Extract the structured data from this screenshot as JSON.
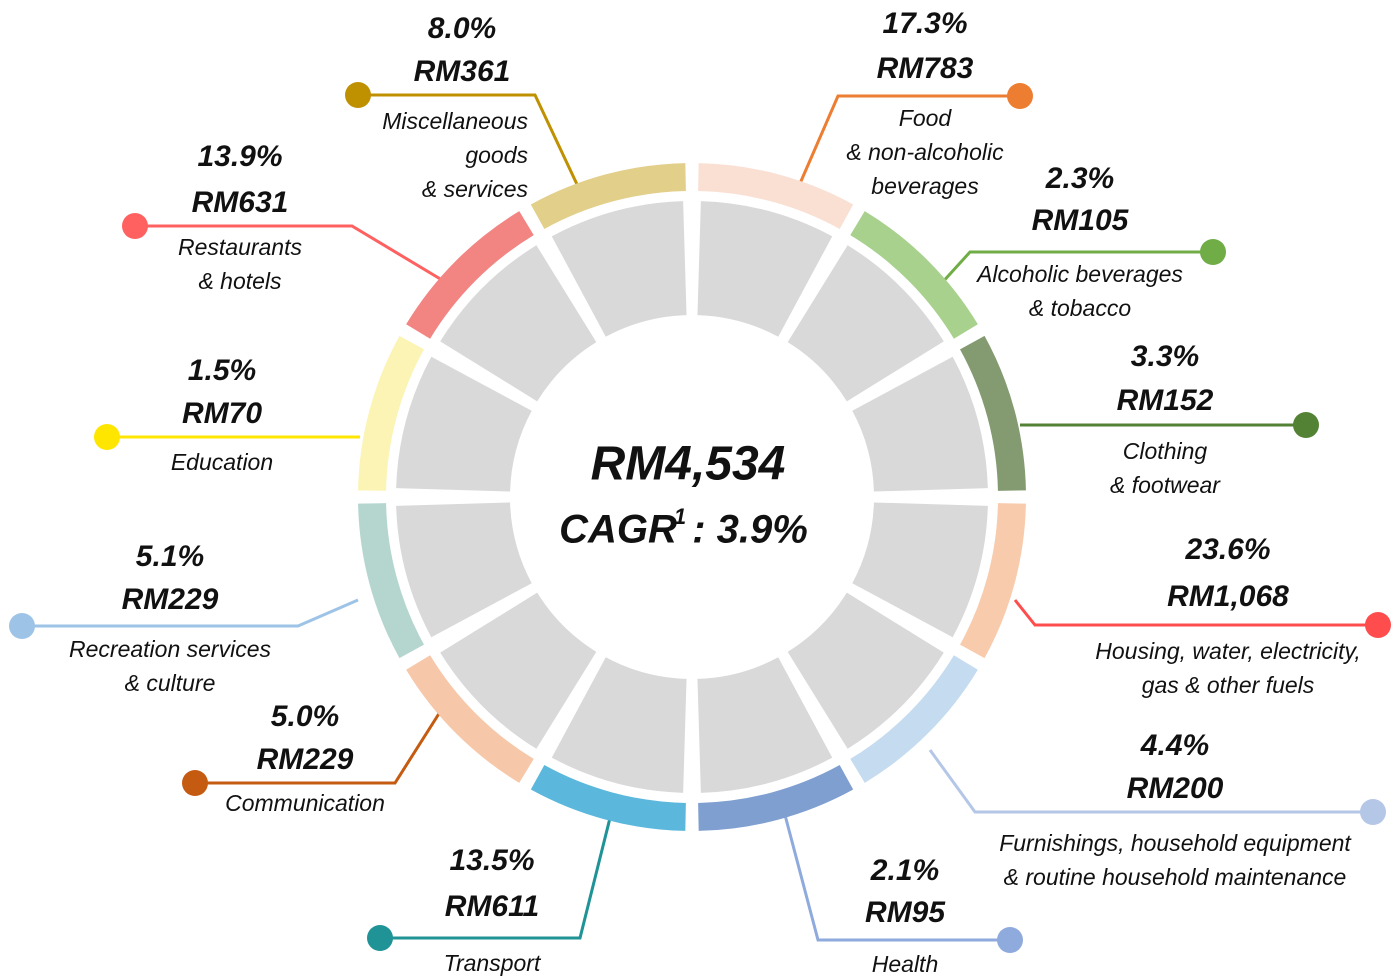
{
  "center": {
    "total": "RM4,534",
    "cagr_label": "CAGR",
    "cagr_note": "1",
    "cagr_value": ": 3.9%"
  },
  "segments": [
    {
      "pct": "17.3%",
      "amount": "RM783",
      "label": [
        "Food",
        "&  non-alcoholic",
        "beverages"
      ]
    },
    {
      "pct": "2.3%",
      "amount": "RM105",
      "label": [
        "Alcoholic beverages",
        "& tobacco"
      ]
    },
    {
      "pct": "3.3%",
      "amount": "RM152",
      "label": [
        "Clothing",
        "& footwear"
      ]
    },
    {
      "pct": "23.6%",
      "amount": "RM1,068",
      "label": [
        "Housing, water, electricity,",
        "gas & other fuels"
      ]
    },
    {
      "pct": "4.4%",
      "amount": "RM200",
      "label": [
        "Furnishings, household equipment",
        "& routine household maintenance"
      ]
    },
    {
      "pct": "2.1%",
      "amount": "RM95",
      "label": [
        "Health"
      ]
    },
    {
      "pct": "13.5%",
      "amount": "RM611",
      "label": [
        "Transport"
      ]
    },
    {
      "pct": "5.0%",
      "amount": "RM229",
      "label": [
        "Communication"
      ]
    },
    {
      "pct": "5.1%",
      "amount": "RM229",
      "label": [
        "Recreation services",
        "& culture"
      ]
    },
    {
      "pct": "1.5%",
      "amount": "RM70",
      "label": [
        "Education"
      ]
    },
    {
      "pct": "13.9%",
      "amount": "RM631",
      "label": [
        "Restaurants",
        "& hotels"
      ]
    },
    {
      "pct": "8.0%",
      "amount": "RM361",
      "label": [
        "Miscellaneous",
        "goods",
        "& services"
      ]
    }
  ]
}
